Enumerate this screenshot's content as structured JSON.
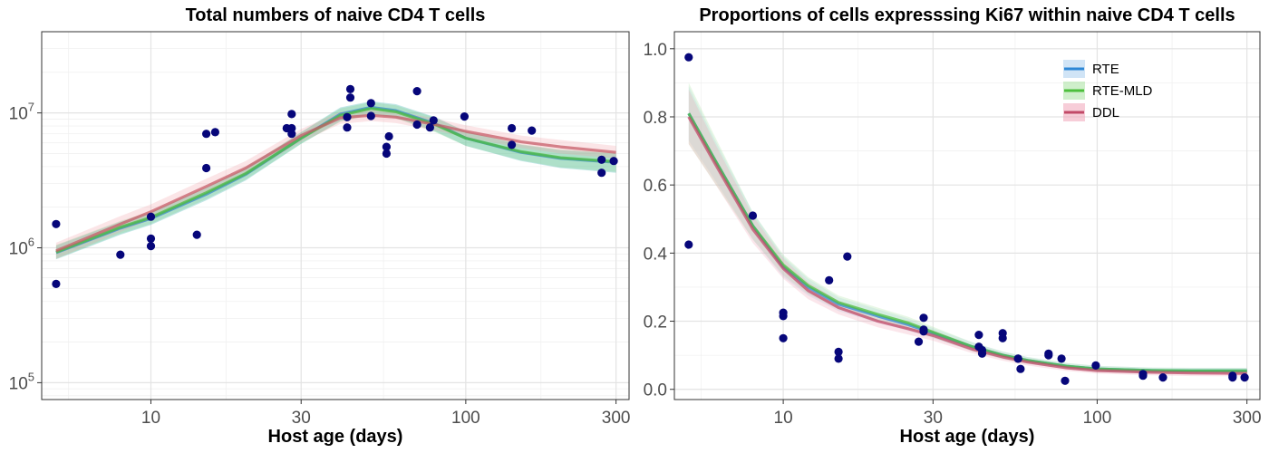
{
  "chart_data": [
    {
      "type": "line",
      "title": "Total numbers of naive CD4 T cells",
      "xlabel": "Host age (days)",
      "ylabel": "",
      "x_scale": "log10",
      "y_scale": "log10",
      "xlim": [
        4.5,
        330
      ],
      "ylim": [
        75000,
        40000000
      ],
      "x_ticks": [
        {
          "v": 10,
          "label": "10"
        },
        {
          "v": 30,
          "label": "30"
        },
        {
          "v": 100,
          "label": "100"
        },
        {
          "v": 300,
          "label": "300"
        }
      ],
      "y_ticks": [
        {
          "v": 100000,
          "base": "10",
          "exp": "5"
        },
        {
          "v": 1000000,
          "base": "10",
          "exp": "6"
        },
        {
          "v": 10000000,
          "base": "10",
          "exp": "7"
        }
      ],
      "grid": true,
      "legend": "none",
      "points": [
        [
          5,
          1500000
        ],
        [
          5,
          540000
        ],
        [
          8,
          890000
        ],
        [
          10,
          1700000
        ],
        [
          10,
          1170000
        ],
        [
          10,
          1030000
        ],
        [
          14,
          1250000
        ],
        [
          15,
          3900000
        ],
        [
          15,
          7000000
        ],
        [
          16,
          7200000
        ],
        [
          27,
          7700000
        ],
        [
          28,
          7700000
        ],
        [
          28,
          7000000
        ],
        [
          28,
          9800000
        ],
        [
          42,
          9300000
        ],
        [
          42,
          7800000
        ],
        [
          43,
          13000000
        ],
        [
          43,
          15000000
        ],
        [
          50,
          9500000
        ],
        [
          50,
          11800000
        ],
        [
          56,
          5600000
        ],
        [
          56,
          5000000
        ],
        [
          57,
          6700000
        ],
        [
          70,
          14500000
        ],
        [
          70,
          8200000
        ],
        [
          77,
          7800000
        ],
        [
          79,
          8800000
        ],
        [
          99,
          9400000
        ],
        [
          140,
          7700000
        ],
        [
          140,
          5800000
        ],
        [
          162,
          7400000
        ],
        [
          270,
          4500000
        ],
        [
          270,
          3600000
        ],
        [
          295,
          4400000
        ]
      ],
      "series": [
        {
          "name": "RTE",
          "color": "#3a87c9",
          "band_color": "#1fa6a6",
          "x": [
            5,
            8,
            10,
            15,
            20,
            30,
            40,
            50,
            60,
            80,
            100,
            150,
            200,
            300
          ],
          "y": [
            920000,
            1400000,
            1650000,
            2500000,
            3500000,
            6500000,
            9800000,
            11000000,
            10400000,
            8300000,
            6500000,
            5100000,
            4600000,
            4300000
          ],
          "lo": [
            820000,
            1250000,
            1480000,
            2250000,
            3150000,
            5900000,
            8700000,
            9800000,
            9200000,
            7300000,
            5700000,
            4400000,
            3900000,
            3600000
          ],
          "hi": [
            1040000,
            1560000,
            1830000,
            2780000,
            3900000,
            7200000,
            11000000,
            12200000,
            11600000,
            9300000,
            7300000,
            5800000,
            5300000,
            5000000
          ]
        },
        {
          "name": "RTE-MLD",
          "color": "#4cbf3c",
          "band_color": "#7ed07e",
          "x": [
            5,
            8,
            10,
            15,
            20,
            30,
            40,
            50,
            60,
            80,
            100,
            150,
            200,
            300
          ],
          "y": [
            930000,
            1420000,
            1680000,
            2560000,
            3550000,
            6500000,
            9600000,
            10800000,
            10200000,
            8200000,
            6500000,
            5150000,
            4650000,
            4350000
          ],
          "lo": [
            830000,
            1270000,
            1500000,
            2300000,
            3200000,
            5900000,
            8600000,
            9700000,
            9100000,
            7200000,
            5700000,
            4450000,
            3950000,
            3650000
          ],
          "hi": [
            1050000,
            1580000,
            1860000,
            2830000,
            3950000,
            7200000,
            10800000,
            12000000,
            11400000,
            9200000,
            7300000,
            5850000,
            5350000,
            5050000
          ]
        },
        {
          "name": "DDL",
          "color": "#c75c68",
          "band_color": "#f2a0a8",
          "x": [
            5,
            8,
            10,
            15,
            20,
            30,
            40,
            50,
            60,
            80,
            100,
            150,
            200,
            300
          ],
          "y": [
            950000,
            1500000,
            1850000,
            2850000,
            3900000,
            6800000,
            9200000,
            9600000,
            9300000,
            8200000,
            7300000,
            6100000,
            5600000,
            5100000
          ],
          "lo": [
            830000,
            1310000,
            1620000,
            2500000,
            3450000,
            6100000,
            8300000,
            8700000,
            8400000,
            7400000,
            6600000,
            5500000,
            5000000,
            4600000
          ],
          "hi": [
            1090000,
            1720000,
            2100000,
            3250000,
            4400000,
            7600000,
            10200000,
            10600000,
            10300000,
            9100000,
            8100000,
            6800000,
            6300000,
            5700000
          ]
        }
      ]
    },
    {
      "type": "line",
      "title": "Proportions of cells expresssing Ki67 within naive CD4 T cells",
      "xlabel": "Host age (days)",
      "ylabel": "",
      "x_scale": "log10",
      "y_scale": "linear",
      "xlim": [
        4.5,
        330
      ],
      "ylim": [
        -0.03,
        1.05
      ],
      "x_ticks": [
        {
          "v": 10,
          "label": "10"
        },
        {
          "v": 30,
          "label": "30"
        },
        {
          "v": 100,
          "label": "100"
        },
        {
          "v": 300,
          "label": "300"
        }
      ],
      "y_ticks": [
        {
          "v": 0.0,
          "label": "0.0"
        },
        {
          "v": 0.2,
          "label": "0.2"
        },
        {
          "v": 0.4,
          "label": "0.4"
        },
        {
          "v": 0.6,
          "label": "0.6"
        },
        {
          "v": 0.8,
          "label": "0.8"
        },
        {
          "v": 1.0,
          "label": "1.0"
        }
      ],
      "grid": true,
      "legend": "top-right",
      "points": [
        [
          5,
          0.975
        ],
        [
          5,
          0.425
        ],
        [
          8,
          0.51
        ],
        [
          10,
          0.225
        ],
        [
          10,
          0.215
        ],
        [
          10,
          0.15
        ],
        [
          14,
          0.32
        ],
        [
          15,
          0.11
        ],
        [
          15,
          0.09
        ],
        [
          16,
          0.39
        ],
        [
          27,
          0.14
        ],
        [
          28,
          0.21
        ],
        [
          28,
          0.175
        ],
        [
          28,
          0.17
        ],
        [
          42,
          0.16
        ],
        [
          42,
          0.125
        ],
        [
          43,
          0.115
        ],
        [
          43,
          0.105
        ],
        [
          50,
          0.165
        ],
        [
          50,
          0.15
        ],
        [
          56,
          0.09
        ],
        [
          56,
          0.09
        ],
        [
          57,
          0.06
        ],
        [
          70,
          0.105
        ],
        [
          70,
          0.1
        ],
        [
          77,
          0.09
        ],
        [
          79,
          0.025
        ],
        [
          99,
          0.07
        ],
        [
          140,
          0.045
        ],
        [
          140,
          0.04
        ],
        [
          162,
          0.035
        ],
        [
          270,
          0.04
        ],
        [
          270,
          0.035
        ],
        [
          295,
          0.035
        ]
      ],
      "series": [
        {
          "name": "RTE",
          "color": "#2d87d6",
          "band_color": "#a9cdee",
          "x": [
            5,
            6,
            8,
            10,
            12,
            15,
            20,
            25,
            30,
            40,
            50,
            60,
            80,
            100,
            150,
            200,
            300
          ],
          "y": [
            0.81,
            0.68,
            0.48,
            0.36,
            0.3,
            0.25,
            0.215,
            0.19,
            0.165,
            0.125,
            0.1,
            0.085,
            0.068,
            0.06,
            0.055,
            0.054,
            0.054
          ],
          "lo": [
            0.73,
            0.62,
            0.44,
            0.33,
            0.275,
            0.23,
            0.195,
            0.172,
            0.15,
            0.112,
            0.089,
            0.075,
            0.059,
            0.051,
            0.046,
            0.045,
            0.045
          ],
          "hi": [
            0.89,
            0.74,
            0.52,
            0.39,
            0.325,
            0.27,
            0.235,
            0.208,
            0.18,
            0.138,
            0.111,
            0.095,
            0.077,
            0.069,
            0.064,
            0.063,
            0.063
          ]
        },
        {
          "name": "RTE-MLD",
          "color": "#4cbf3c",
          "band_color": "#a8e2a0",
          "x": [
            5,
            6,
            8,
            10,
            12,
            15,
            20,
            25,
            30,
            40,
            50,
            60,
            80,
            100,
            150,
            200,
            300
          ],
          "y": [
            0.81,
            0.68,
            0.48,
            0.365,
            0.305,
            0.255,
            0.22,
            0.195,
            0.168,
            0.125,
            0.1,
            0.085,
            0.068,
            0.06,
            0.055,
            0.054,
            0.054
          ],
          "lo": [
            0.72,
            0.61,
            0.44,
            0.335,
            0.28,
            0.235,
            0.2,
            0.177,
            0.152,
            0.112,
            0.089,
            0.075,
            0.059,
            0.051,
            0.046,
            0.045,
            0.045
          ],
          "hi": [
            0.9,
            0.75,
            0.52,
            0.395,
            0.33,
            0.275,
            0.24,
            0.213,
            0.184,
            0.138,
            0.111,
            0.095,
            0.077,
            0.069,
            0.064,
            0.063,
            0.063
          ]
        },
        {
          "name": "DDL",
          "color": "#c24a68",
          "band_color": "#f0a4b8",
          "x": [
            5,
            6,
            8,
            10,
            12,
            15,
            20,
            25,
            30,
            40,
            50,
            60,
            80,
            100,
            150,
            200,
            300
          ],
          "y": [
            0.8,
            0.67,
            0.47,
            0.355,
            0.29,
            0.24,
            0.2,
            0.178,
            0.158,
            0.118,
            0.095,
            0.08,
            0.063,
            0.055,
            0.05,
            0.048,
            0.047
          ],
          "lo": [
            0.72,
            0.61,
            0.43,
            0.325,
            0.265,
            0.22,
            0.182,
            0.161,
            0.143,
            0.106,
            0.084,
            0.07,
            0.054,
            0.046,
            0.041,
            0.039,
            0.038
          ],
          "hi": [
            0.88,
            0.73,
            0.51,
            0.385,
            0.315,
            0.26,
            0.218,
            0.195,
            0.173,
            0.13,
            0.106,
            0.09,
            0.072,
            0.064,
            0.059,
            0.057,
            0.056
          ]
        }
      ]
    }
  ]
}
